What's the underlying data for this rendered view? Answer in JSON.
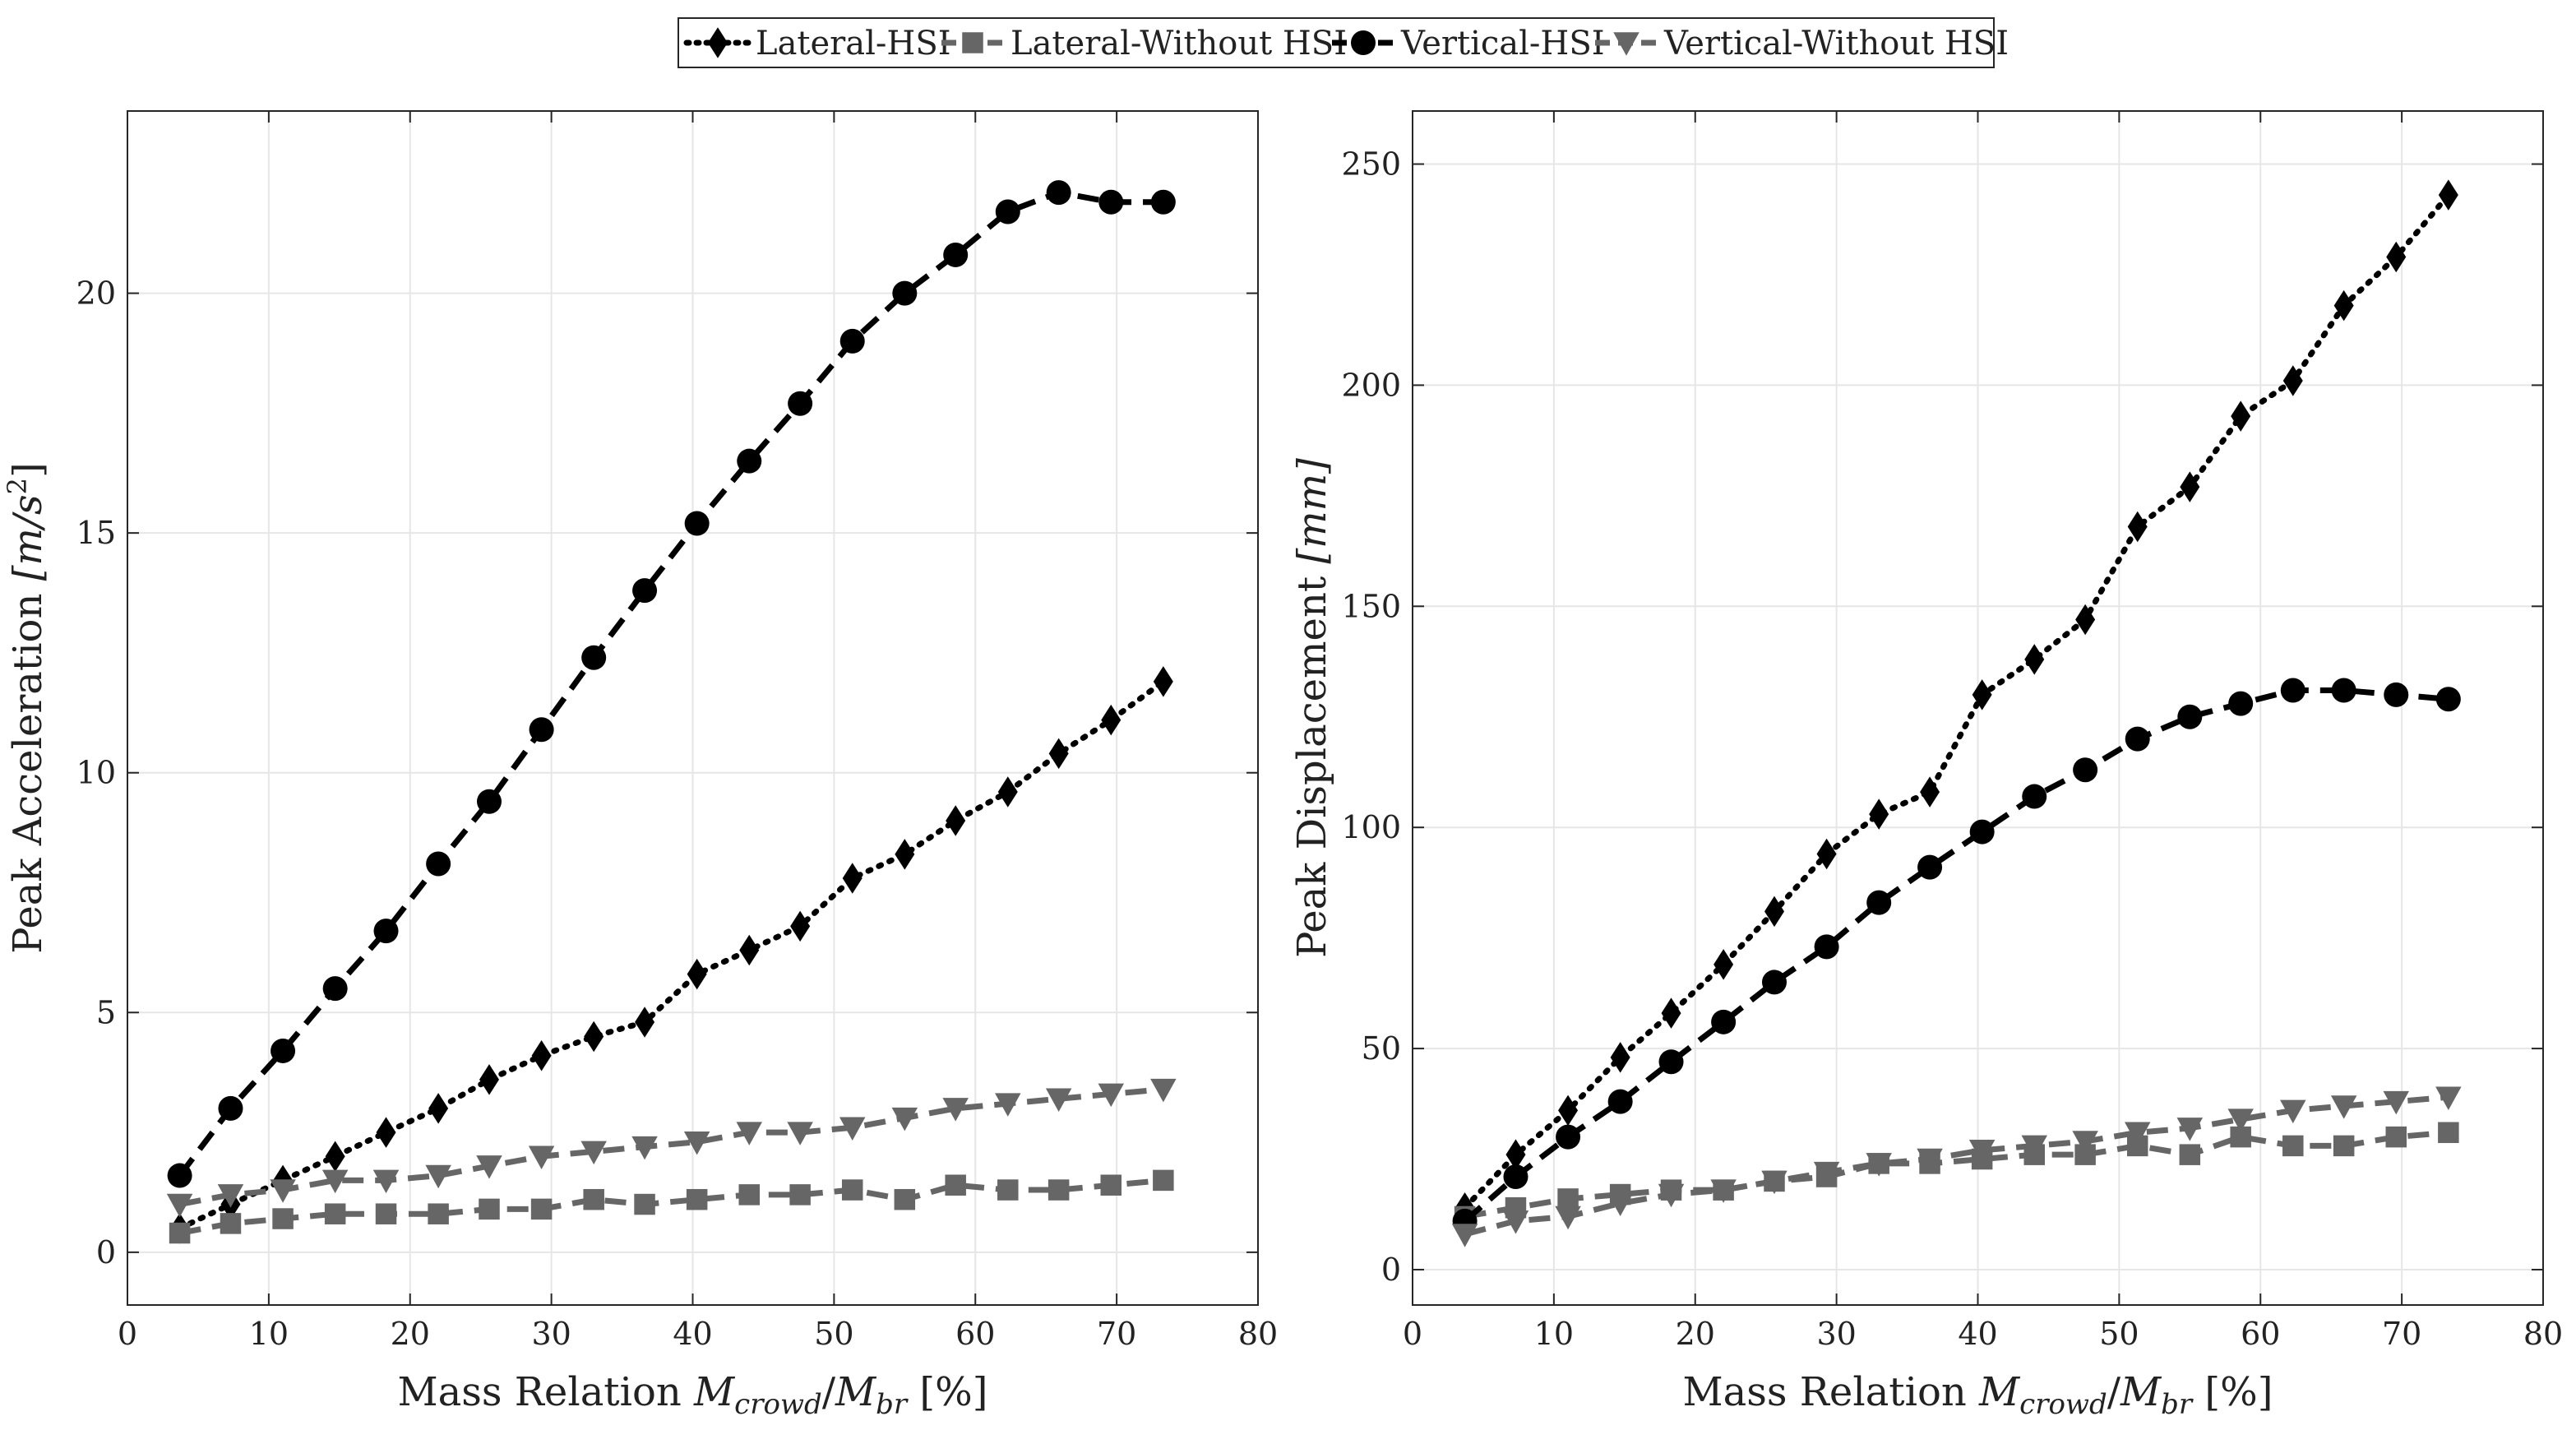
{
  "chart_data": [
    {
      "type": "line",
      "xlabel": "Mass Relation M_crowd/M_br [%]",
      "xlabel_parts": {
        "prefix": "Mass Relation ",
        "var1": "M",
        "sub1": "crowd",
        "slash": "/",
        "var2": "M",
        "sub2": "br",
        "suffix": " [%]"
      },
      "ylabel": "Peak Acceleration [m/s^2]",
      "ylabel_parts": {
        "prefix": "Peak Acceleration ",
        "unit": "[m/s",
        "sup": "2",
        "close": "]"
      },
      "xlim": [
        0,
        80
      ],
      "ylim": [
        -1.1,
        23.8
      ],
      "xticks": [
        0,
        10,
        20,
        30,
        40,
        50,
        60,
        70,
        80
      ],
      "yticks": [
        0,
        5,
        10,
        15,
        20
      ],
      "grid": true,
      "x": [
        3.7,
        7.3,
        11.0,
        14.7,
        18.3,
        22.0,
        25.6,
        29.3,
        33.0,
        36.6,
        40.3,
        44.0,
        47.6,
        51.3,
        55.0,
        58.6,
        62.3,
        65.9,
        69.6,
        73.3
      ],
      "series": [
        {
          "name": "Lateral-HSI",
          "values": [
            0.5,
            1.0,
            1.5,
            2.0,
            2.5,
            3.0,
            3.6,
            4.1,
            4.5,
            4.8,
            5.8,
            6.3,
            6.8,
            7.8,
            8.3,
            9.0,
            9.6,
            10.4,
            11.1,
            11.9
          ]
        },
        {
          "name": "Lateral-Without HSI",
          "values": [
            0.4,
            0.6,
            0.7,
            0.8,
            0.8,
            0.8,
            0.9,
            0.9,
            1.1,
            1.0,
            1.1,
            1.2,
            1.2,
            1.3,
            1.1,
            1.4,
            1.3,
            1.3,
            1.4,
            1.5
          ]
        },
        {
          "name": "Vertical-HSI",
          "values": [
            1.6,
            3.0,
            4.2,
            5.5,
            6.7,
            8.1,
            9.4,
            10.9,
            12.4,
            13.8,
            15.2,
            16.5,
            17.7,
            19.0,
            20.0,
            20.8,
            21.7,
            22.1,
            21.9,
            21.9
          ]
        },
        {
          "name": "Vertical-Without HSI",
          "values": [
            1.0,
            1.2,
            1.3,
            1.5,
            1.5,
            1.6,
            1.8,
            2.0,
            2.1,
            2.2,
            2.3,
            2.5,
            2.5,
            2.6,
            2.8,
            3.0,
            3.1,
            3.2,
            3.3,
            3.4
          ]
        }
      ]
    },
    {
      "type": "line",
      "xlabel": "Mass Relation M_crowd/M_br [%]",
      "xlabel_parts": {
        "prefix": "Mass Relation ",
        "var1": "M",
        "sub1": "crowd",
        "slash": "/",
        "var2": "M",
        "sub2": "br",
        "suffix": " [%]"
      },
      "ylabel": "Peak Displacement [mm]",
      "ylabel_parts": {
        "prefix": "Peak Displacement ",
        "unit": "[mm]"
      },
      "xlim": [
        0,
        80
      ],
      "ylim": [
        -8,
        262
      ],
      "xticks": [
        0,
        10,
        20,
        30,
        40,
        50,
        60,
        70,
        80
      ],
      "yticks": [
        0,
        50,
        100,
        150,
        200,
        250
      ],
      "grid": true,
      "x": [
        3.7,
        7.3,
        11.0,
        14.7,
        18.3,
        22.0,
        25.6,
        29.3,
        33.0,
        36.6,
        40.3,
        44.0,
        47.6,
        51.3,
        55.0,
        58.6,
        62.3,
        65.9,
        69.6,
        73.3
      ],
      "series": [
        {
          "name": "Lateral-HSI",
          "values": [
            14,
            26,
            36,
            48,
            58,
            69,
            81,
            94,
            103,
            108,
            130,
            138,
            147,
            168,
            177,
            193,
            201,
            218,
            229,
            243
          ]
        },
        {
          "name": "Lateral-Without HSI",
          "values": [
            12,
            14,
            16,
            17,
            18,
            18,
            20,
            21,
            24,
            24,
            25,
            26,
            26,
            28,
            26,
            30,
            28,
            28,
            30,
            31
          ]
        },
        {
          "name": "Vertical-HSI",
          "values": [
            11,
            21,
            30,
            38,
            47,
            56,
            65,
            73,
            83,
            91,
            99,
            107,
            113,
            120,
            125,
            128,
            131,
            131,
            130,
            129
          ]
        },
        {
          "name": "Vertical-Without HSI",
          "values": [
            8,
            11,
            12,
            15,
            17,
            18,
            20,
            22,
            24,
            25,
            27,
            28,
            29,
            31,
            32,
            34,
            36,
            37,
            38,
            39
          ]
        }
      ]
    }
  ],
  "legend": {
    "entries": [
      "Lateral-HSI",
      "Lateral-Without HSI",
      "Vertical-HSI",
      "Vertical-Without HSI"
    ],
    "placement": "top-center"
  },
  "colors": {
    "black": "#000000",
    "gray": "#666666",
    "grid": "#e6e6e6",
    "axis": "#262626"
  },
  "styles": [
    {
      "color": "black",
      "dash": "dot",
      "marker": "diamond"
    },
    {
      "color": "gray",
      "dash": "dash",
      "marker": "square"
    },
    {
      "color": "black",
      "dash": "dash",
      "marker": "circle"
    },
    {
      "color": "gray",
      "dash": "dash",
      "marker": "triangle-down"
    }
  ]
}
